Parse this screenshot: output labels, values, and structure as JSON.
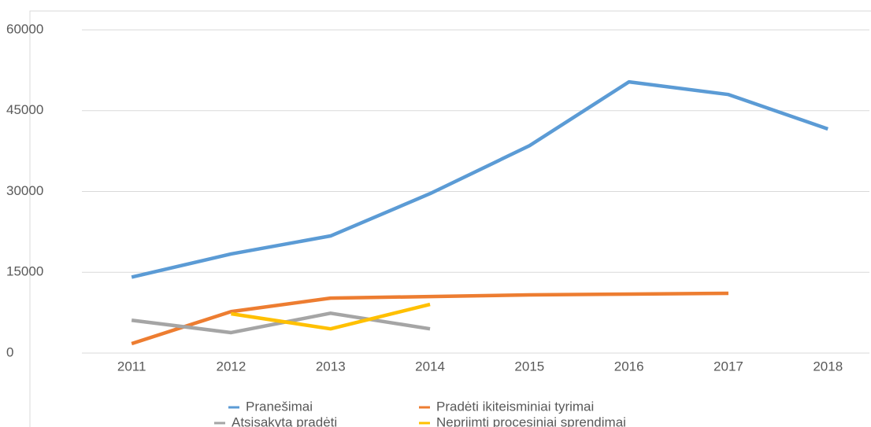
{
  "chart_data": {
    "type": "line",
    "categories": [
      "2011",
      "2012",
      "2013",
      "2014",
      "2015",
      "2016",
      "2017",
      "2018"
    ],
    "series": [
      {
        "name": "Pranešimai",
        "color": "#5b9bd5",
        "values": [
          14100,
          18400,
          21750,
          29600,
          38500,
          50350,
          48000,
          41600
        ]
      },
      {
        "name": "Pradėti ikiteisminiai tyrimai",
        "color": "#ed7d31",
        "values": [
          1750,
          7700,
          10200,
          10500,
          10800,
          10950,
          11100,
          null
        ]
      },
      {
        "name": "Atsisakyta pradėti",
        "color": "#a5a5a5",
        "values": [
          6100,
          3800,
          7400,
          4500,
          null,
          null,
          null,
          null
        ]
      },
      {
        "name": "Nepriimti procesiniai sprendimai",
        "color": "#ffc000",
        "values": [
          null,
          7300,
          4500,
          9050,
          null,
          null,
          null,
          null
        ]
      }
    ],
    "ylim": [
      0,
      60000
    ],
    "yticks": [
      0,
      15000,
      30000,
      45000,
      60000
    ],
    "grid": true,
    "legend": "bottom"
  }
}
